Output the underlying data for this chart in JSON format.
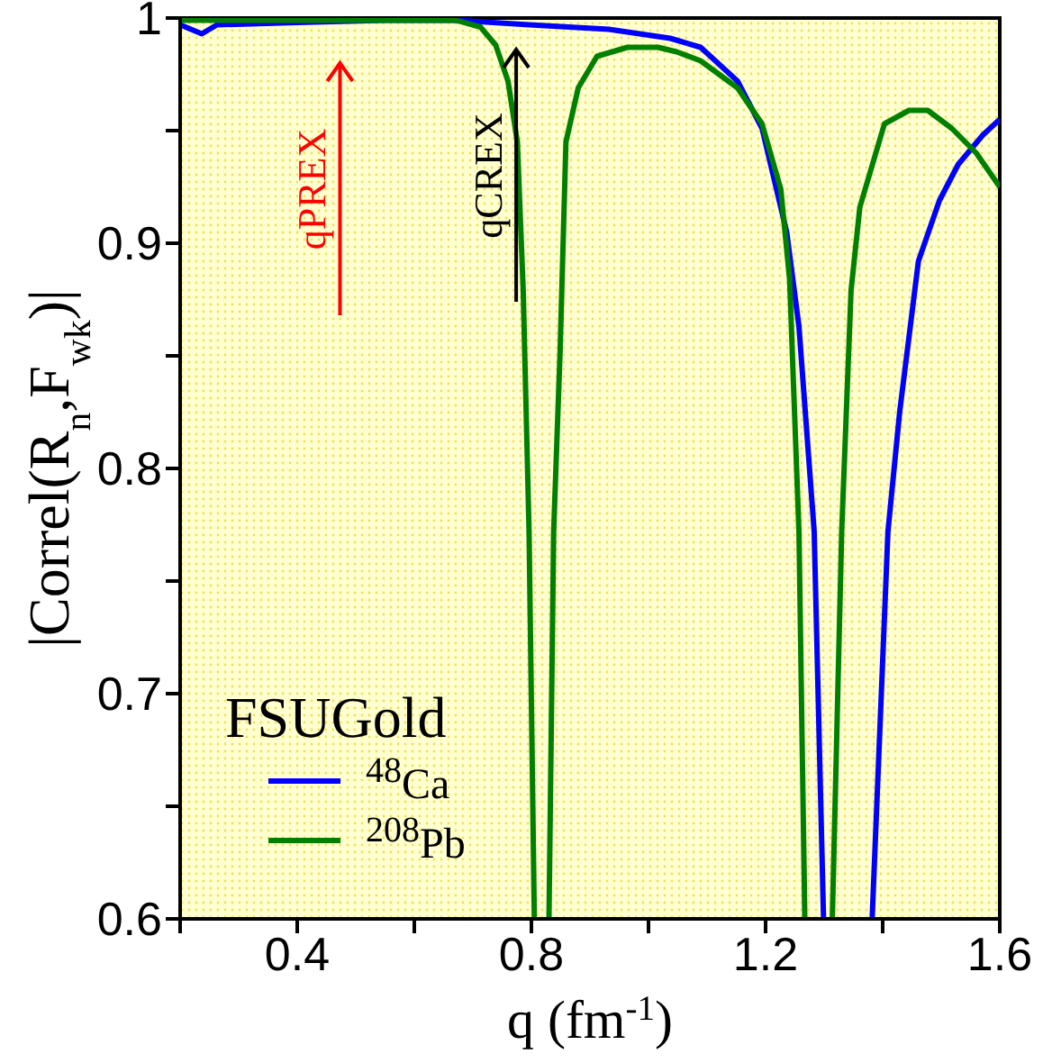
{
  "chart_data": {
    "type": "line",
    "xlabel": "q (fm$^{-1}$)",
    "ylabel": "|Correl(R$_{n}$,F$_{wk}$)|",
    "legend_title": "FSUGold",
    "legend": "bottom left",
    "marker": "none",
    "line_style": "solid",
    "xlim": [
      0.2,
      1.6
    ],
    "xticks": [
      {
        "value": 0.2,
        "label": null
      },
      0.4,
      {
        "value": 0.6,
        "label": null
      },
      0.8,
      {
        "value": 1.0,
        "label": null
      },
      1.2,
      {
        "value": 1.4,
        "label": null
      },
      1.6
    ],
    "ylim": [
      0.6,
      1.0
    ],
    "yticks": [
      0.6,
      {
        "value": 0.65,
        "label": null
      },
      0.7,
      {
        "value": 0.75,
        "label": null
      },
      0.8,
      {
        "value": 0.85,
        "label": null
      },
      0.9,
      {
        "value": 0.95,
        "label": null
      },
      {
        "value": 1.0,
        "label": "1"
      }
    ],
    "series": [
      {
        "name": "$^{48}$Ca",
        "color": "#0000ff",
        "x": [
          0.2,
          0.237,
          0.263,
          0.4,
          0.55,
          0.671,
          0.796,
          0.932,
          1.037,
          1.089,
          1.152,
          1.194,
          1.236,
          1.257,
          1.283,
          1.299,
          1.34,
          1.382,
          1.409,
          1.429,
          1.461,
          1.497,
          1.529,
          1.571,
          1.6
        ],
        "values": [
          0.997,
          0.993,
          0.997,
          0.998,
          0.999,
          0.999,
          0.997,
          0.995,
          0.991,
          0.987,
          0.972,
          0.951,
          0.905,
          0.863,
          0.772,
          0.6,
          null,
          0.6,
          0.772,
          0.825,
          0.892,
          0.919,
          0.935,
          0.948,
          0.955
        ]
      },
      {
        "name": "$^{208}$Pb",
        "color": "#008000",
        "x": [
          0.2,
          0.4,
          0.6,
          0.671,
          0.713,
          0.739,
          0.76,
          0.776,
          0.786,
          0.796,
          0.805,
          0.818,
          0.83,
          0.838,
          0.849,
          0.859,
          0.88,
          0.912,
          0.964,
          1.016,
          1.048,
          1.089,
          1.152,
          1.194,
          1.226,
          1.241,
          1.257,
          1.267,
          1.29,
          1.314,
          1.33,
          1.346,
          1.361,
          1.403,
          1.445,
          1.477,
          1.518,
          1.56,
          1.6
        ],
        "values": [
          0.999,
          0.999,
          0.999,
          0.999,
          0.996,
          0.988,
          0.972,
          0.945,
          0.879,
          0.772,
          0.6,
          null,
          0.6,
          0.772,
          0.852,
          0.945,
          0.969,
          0.983,
          0.987,
          0.987,
          0.985,
          0.981,
          0.969,
          0.953,
          0.924,
          0.884,
          0.772,
          0.6,
          null,
          0.6,
          0.772,
          0.879,
          0.916,
          0.953,
          0.959,
          0.959,
          0.951,
          0.94,
          0.925
        ]
      }
    ],
    "annotations": [
      "qPREX",
      "qCREX"
    ]
  }
}
